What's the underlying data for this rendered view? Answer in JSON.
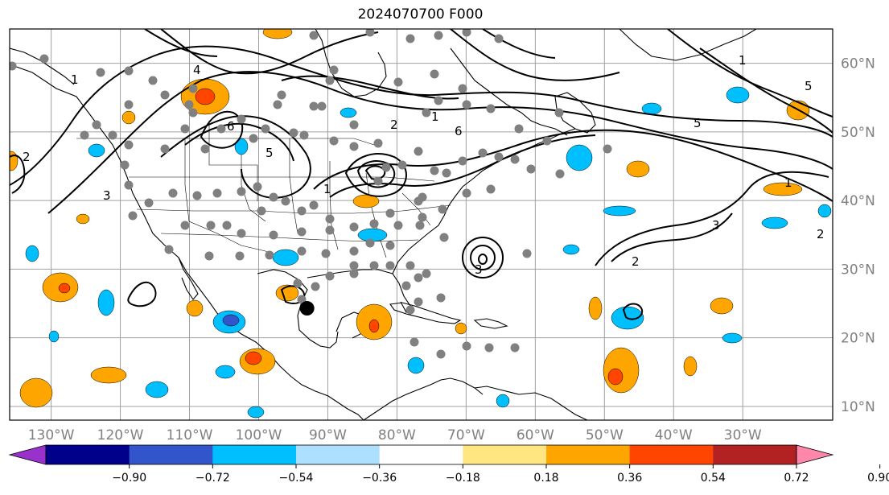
{
  "title": "2024070700 F000",
  "map": {
    "lat_labels": [
      {
        "text": "60°N",
        "lat": 60
      },
      {
        "text": "50°N",
        "lat": 50
      },
      {
        "text": "40°N",
        "lat": 40
      },
      {
        "text": "30°N",
        "lat": 30
      },
      {
        "text": "20°N",
        "lat": 20
      },
      {
        "text": "10°N",
        "lat": 10
      }
    ],
    "lon_labels": [
      {
        "text": "130°W",
        "lon": -130
      },
      {
        "text": "120°W",
        "lon": -120
      },
      {
        "text": "110°W",
        "lon": -110
      },
      {
        "text": "100°W",
        "lon": -100
      },
      {
        "text": "90°W",
        "lon": -90
      },
      {
        "text": "80°W",
        "lon": -80
      },
      {
        "text": "70°W",
        "lon": -70
      },
      {
        "text": "60°W",
        "lon": -60
      },
      {
        "text": "50°W",
        "lon": -50
      },
      {
        "text": "40°W",
        "lon": -40
      },
      {
        "text": "30°W",
        "lon": -30
      }
    ],
    "extent": {
      "lon_min": -136,
      "lon_max": -17,
      "lat_min": 8,
      "lat_max": 65
    },
    "contour_labels": [
      "1",
      "2",
      "3",
      "4",
      "5",
      "6",
      "1",
      "2",
      "1",
      "3",
      "6",
      "5",
      "1",
      "2",
      "3",
      "2",
      "1",
      "5"
    ],
    "storm_marker": {
      "lon": -93,
      "lat": 24.3,
      "color": "#000000"
    },
    "station_color": "#808080"
  },
  "colorbar": {
    "colors": [
      "#9932CC",
      "#00008B",
      "#3355CC",
      "#00BFFF",
      "#ADDFFF",
      "#FFFFFF",
      "#FFE680",
      "#FFA500",
      "#FF4500",
      "#B22222",
      "#FF88AA"
    ],
    "tick_labels": [
      "−0.90",
      "−0.72",
      "−0.54",
      "−0.36",
      "−0.18",
      "0.18",
      "0.36",
      "0.54",
      "0.72",
      "0.90"
    ]
  }
}
